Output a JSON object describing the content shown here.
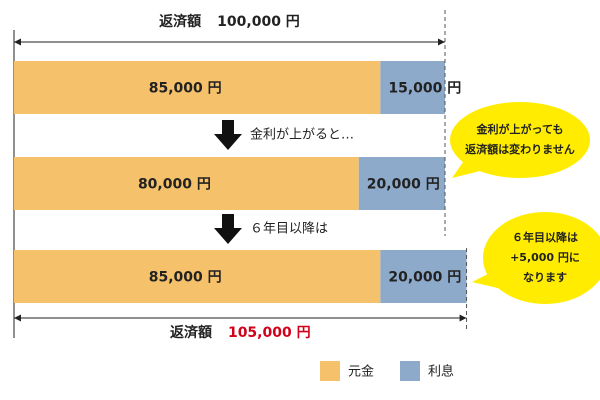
{
  "series": [
    {
      "name": "元金",
      "color": "#f5c26b",
      "values": [
        85000,
        80000,
        85000
      ],
      "value_labels": [
        "85,000 円",
        "80,000 円",
        "85,000 円"
      ]
    },
    {
      "name": "利息",
      "color": "#8eaacb",
      "values": [
        15000,
        20000,
        20000
      ],
      "value_labels": [
        "15,000 円",
        "20,000 円",
        "20,000 円"
      ]
    }
  ],
  "steps": [
    "金利が上がると…",
    "６年目以降は"
  ],
  "totals": [
    {
      "label": "返済額",
      "value": 100000,
      "value_label": "100,000 円",
      "color": "#222222"
    },
    {
      "label": "返済額",
      "value": 105000,
      "value_label": "105,000 円",
      "color": "#d0021b"
    }
  ],
  "callouts": [
    [
      "金利が上がっても",
      "返済額は変わりません"
    ],
    [
      "６年目以降は",
      "+5,000 円に",
      "なります"
    ]
  ]
}
